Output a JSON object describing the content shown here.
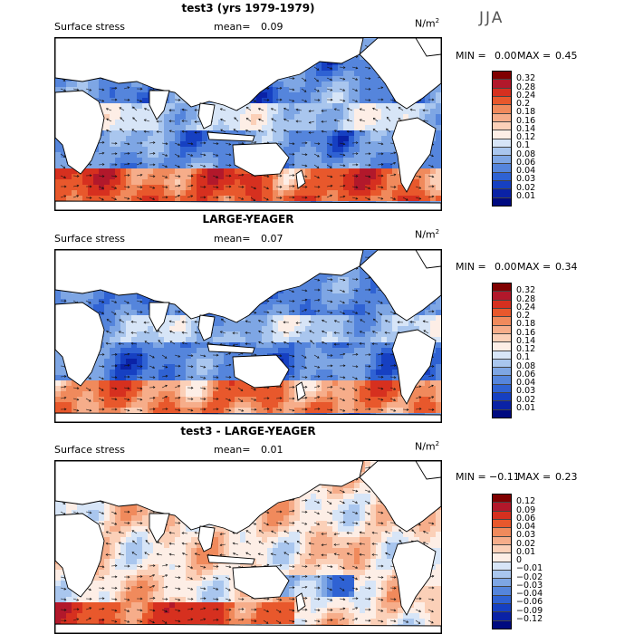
{
  "season": "JJA",
  "units": {
    "base": "N/m",
    "exp": "2"
  },
  "panels": [
    {
      "title": "test3 (yrs 1979-1979)",
      "field": "Surface stress",
      "mean_label": "mean=",
      "mean": "0.09",
      "min_label": "MIN =",
      "min": "0.00",
      "max_label": "MAX =",
      "max": "0.45",
      "colors": [
        "#800000",
        "#b2182b",
        "#d6301f",
        "#e8582c",
        "#f08a5c",
        "#f6ad8a",
        "#fbd0b8",
        "#fdeee6",
        "#d7e5f7",
        "#a9c6ee",
        "#7ea6e4",
        "#5585dc",
        "#2f62d3",
        "#1640c2",
        "#0a22a6",
        "#000a80"
      ],
      "levels": [
        "0.32",
        "0.28",
        "0.24",
        "0.2",
        "0.18",
        "0.16",
        "0.14",
        "0.12",
        "0.1",
        "0.08",
        "0.06",
        "0.04",
        "0.03",
        "0.02",
        "0.01"
      ]
    },
    {
      "title": "LARGE-YEAGER",
      "field": "Surface stress",
      "mean_label": "mean=",
      "mean": "0.07",
      "min_label": "MIN =",
      "min": "0.00",
      "max_label": "MAX =",
      "max": "0.34",
      "colors": [
        "#800000",
        "#b2182b",
        "#d6301f",
        "#e8582c",
        "#f08a5c",
        "#f6ad8a",
        "#fbd0b8",
        "#fdeee6",
        "#d7e5f7",
        "#a9c6ee",
        "#7ea6e4",
        "#5585dc",
        "#2f62d3",
        "#1640c2",
        "#0a22a6",
        "#000a80"
      ],
      "levels": [
        "0.32",
        "0.28",
        "0.24",
        "0.2",
        "0.18",
        "0.16",
        "0.14",
        "0.12",
        "0.1",
        "0.08",
        "0.06",
        "0.04",
        "0.03",
        "0.02",
        "0.01"
      ]
    },
    {
      "title": "test3 - LARGE-YEAGER",
      "field": "Surface stress",
      "mean_label": "mean=",
      "mean": "0.01",
      "min_label": "MIN =",
      "min": "−0.11",
      "max_label": "MAX =",
      "max": "0.23",
      "colors": [
        "#800000",
        "#b2182b",
        "#d6301f",
        "#e8582c",
        "#f08a5c",
        "#f6ad8a",
        "#fbd0b8",
        "#fdeee6",
        "#d7e5f7",
        "#a9c6ee",
        "#7ea6e4",
        "#5585dc",
        "#2f62d3",
        "#1640c2",
        "#0a22a6",
        "#000a80"
      ],
      "levels": [
        "0.12",
        "0.09",
        "0.06",
        "0.04",
        "0.03",
        "0.02",
        "0.01",
        "0",
        "−0.01",
        "−0.02",
        "−0.03",
        "−0.04",
        "−0.06",
        "−0.09",
        "−0.12"
      ]
    }
  ]
}
